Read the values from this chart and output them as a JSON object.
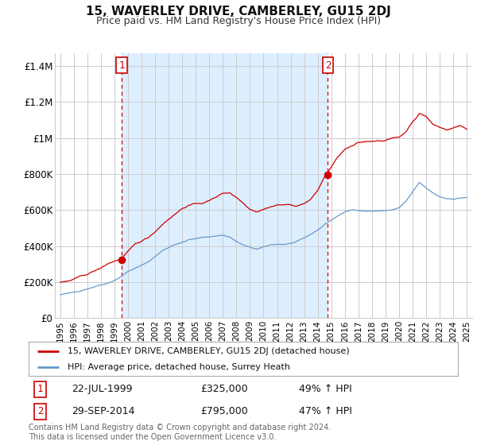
{
  "title": "15, WAVERLEY DRIVE, CAMBERLEY, GU15 2DJ",
  "subtitle": "Price paid vs. HM Land Registry's House Price Index (HPI)",
  "ylabel_ticks": [
    "£0",
    "£200K",
    "£400K",
    "£600K",
    "£800K",
    "£1M",
    "£1.2M",
    "£1.4M"
  ],
  "ytick_values": [
    0,
    200000,
    400000,
    600000,
    800000,
    1000000,
    1200000,
    1400000
  ],
  "ylim": [
    0,
    1470000
  ],
  "legend_line1": "15, WAVERLEY DRIVE, CAMBERLEY, GU15 2DJ (detached house)",
  "legend_line2": "HPI: Average price, detached house, Surrey Heath",
  "sale1_label": "1",
  "sale1_date": "22-JUL-1999",
  "sale1_price": "£325,000",
  "sale1_hpi": "49% ↑ HPI",
  "sale2_label": "2",
  "sale2_date": "29-SEP-2014",
  "sale2_price": "£795,000",
  "sale2_hpi": "47% ↑ HPI",
  "footer": "Contains HM Land Registry data © Crown copyright and database right 2024.\nThis data is licensed under the Open Government Licence v3.0.",
  "line_color_red": "#cc0000",
  "line_color_blue": "#6699cc",
  "fill_color": "#ddeeff",
  "vline_color": "#cc0000",
  "grid_color": "#cccccc",
  "background_color": "#ffffff",
  "sale1_x_year": 1999.54,
  "sale2_x_year": 2014.75,
  "sale1_y": 325000,
  "sale2_y": 795000,
  "xlim_min": 1994.6,
  "xlim_max": 2025.4
}
